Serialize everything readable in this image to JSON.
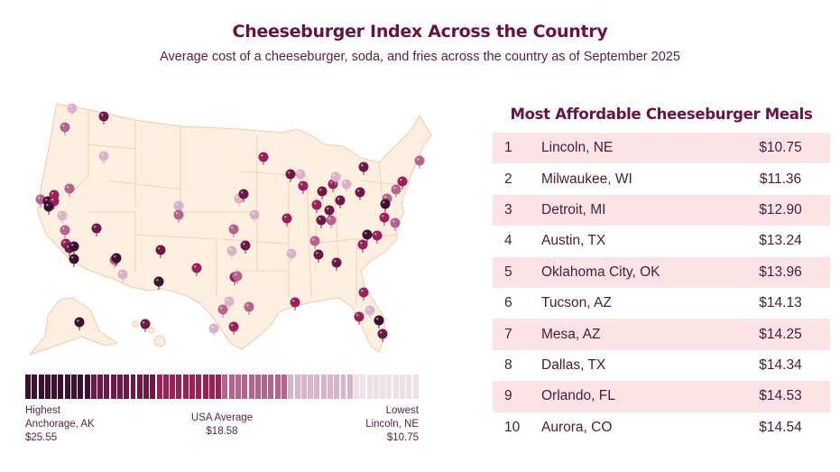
{
  "title": "Cheeseburger Index Across the Country",
  "subtitle": "Average cost of a cheeseburger, soda, and fries across the country as of September 2025",
  "chart_data": {
    "type": "table",
    "title": "Most Affordable Cheeseburger Meals",
    "rows": [
      {
        "rank": "1",
        "city": "Lincoln, NE",
        "price": "$10.75"
      },
      {
        "rank": "2",
        "city": "Milwaukee, WI",
        "price": "$11.36"
      },
      {
        "rank": "3",
        "city": "Detroit, MI",
        "price": "$12.90"
      },
      {
        "rank": "4",
        "city": "Austin, TX",
        "price": "$13.24"
      },
      {
        "rank": "5",
        "city": "Oklahoma City, OK",
        "price": "$13.96"
      },
      {
        "rank": "6",
        "city": "Tucson, AZ",
        "price": "$14.13"
      },
      {
        "rank": "7",
        "city": "Mesa, AZ",
        "price": "$14.25"
      },
      {
        "rank": "8",
        "city": "Dallas, TX",
        "price": "$14.34"
      },
      {
        "rank": "9",
        "city": "Orlando, FL",
        "price": "$14.53"
      },
      {
        "rank": "10",
        "city": "Aurora, CO",
        "price": "$14.54"
      }
    ]
  },
  "map": {
    "land_color": "#fdf0e0",
    "border_color": "#f7c6a6",
    "shade_colors": [
      "#3d0f30",
      "#6e1848",
      "#9c1f5a",
      "#b5628e",
      "#dab3c8",
      "#efe0e8"
    ]
  },
  "legend": {
    "high_label": "Highest",
    "high_city": "Anchorage, AK",
    "high_value": "$25.55",
    "avg_label": "USA Average",
    "avg_value": "$18.58",
    "low_label": "Lowest",
    "low_city": "Lincoln, NE",
    "low_value": "$10.75"
  }
}
